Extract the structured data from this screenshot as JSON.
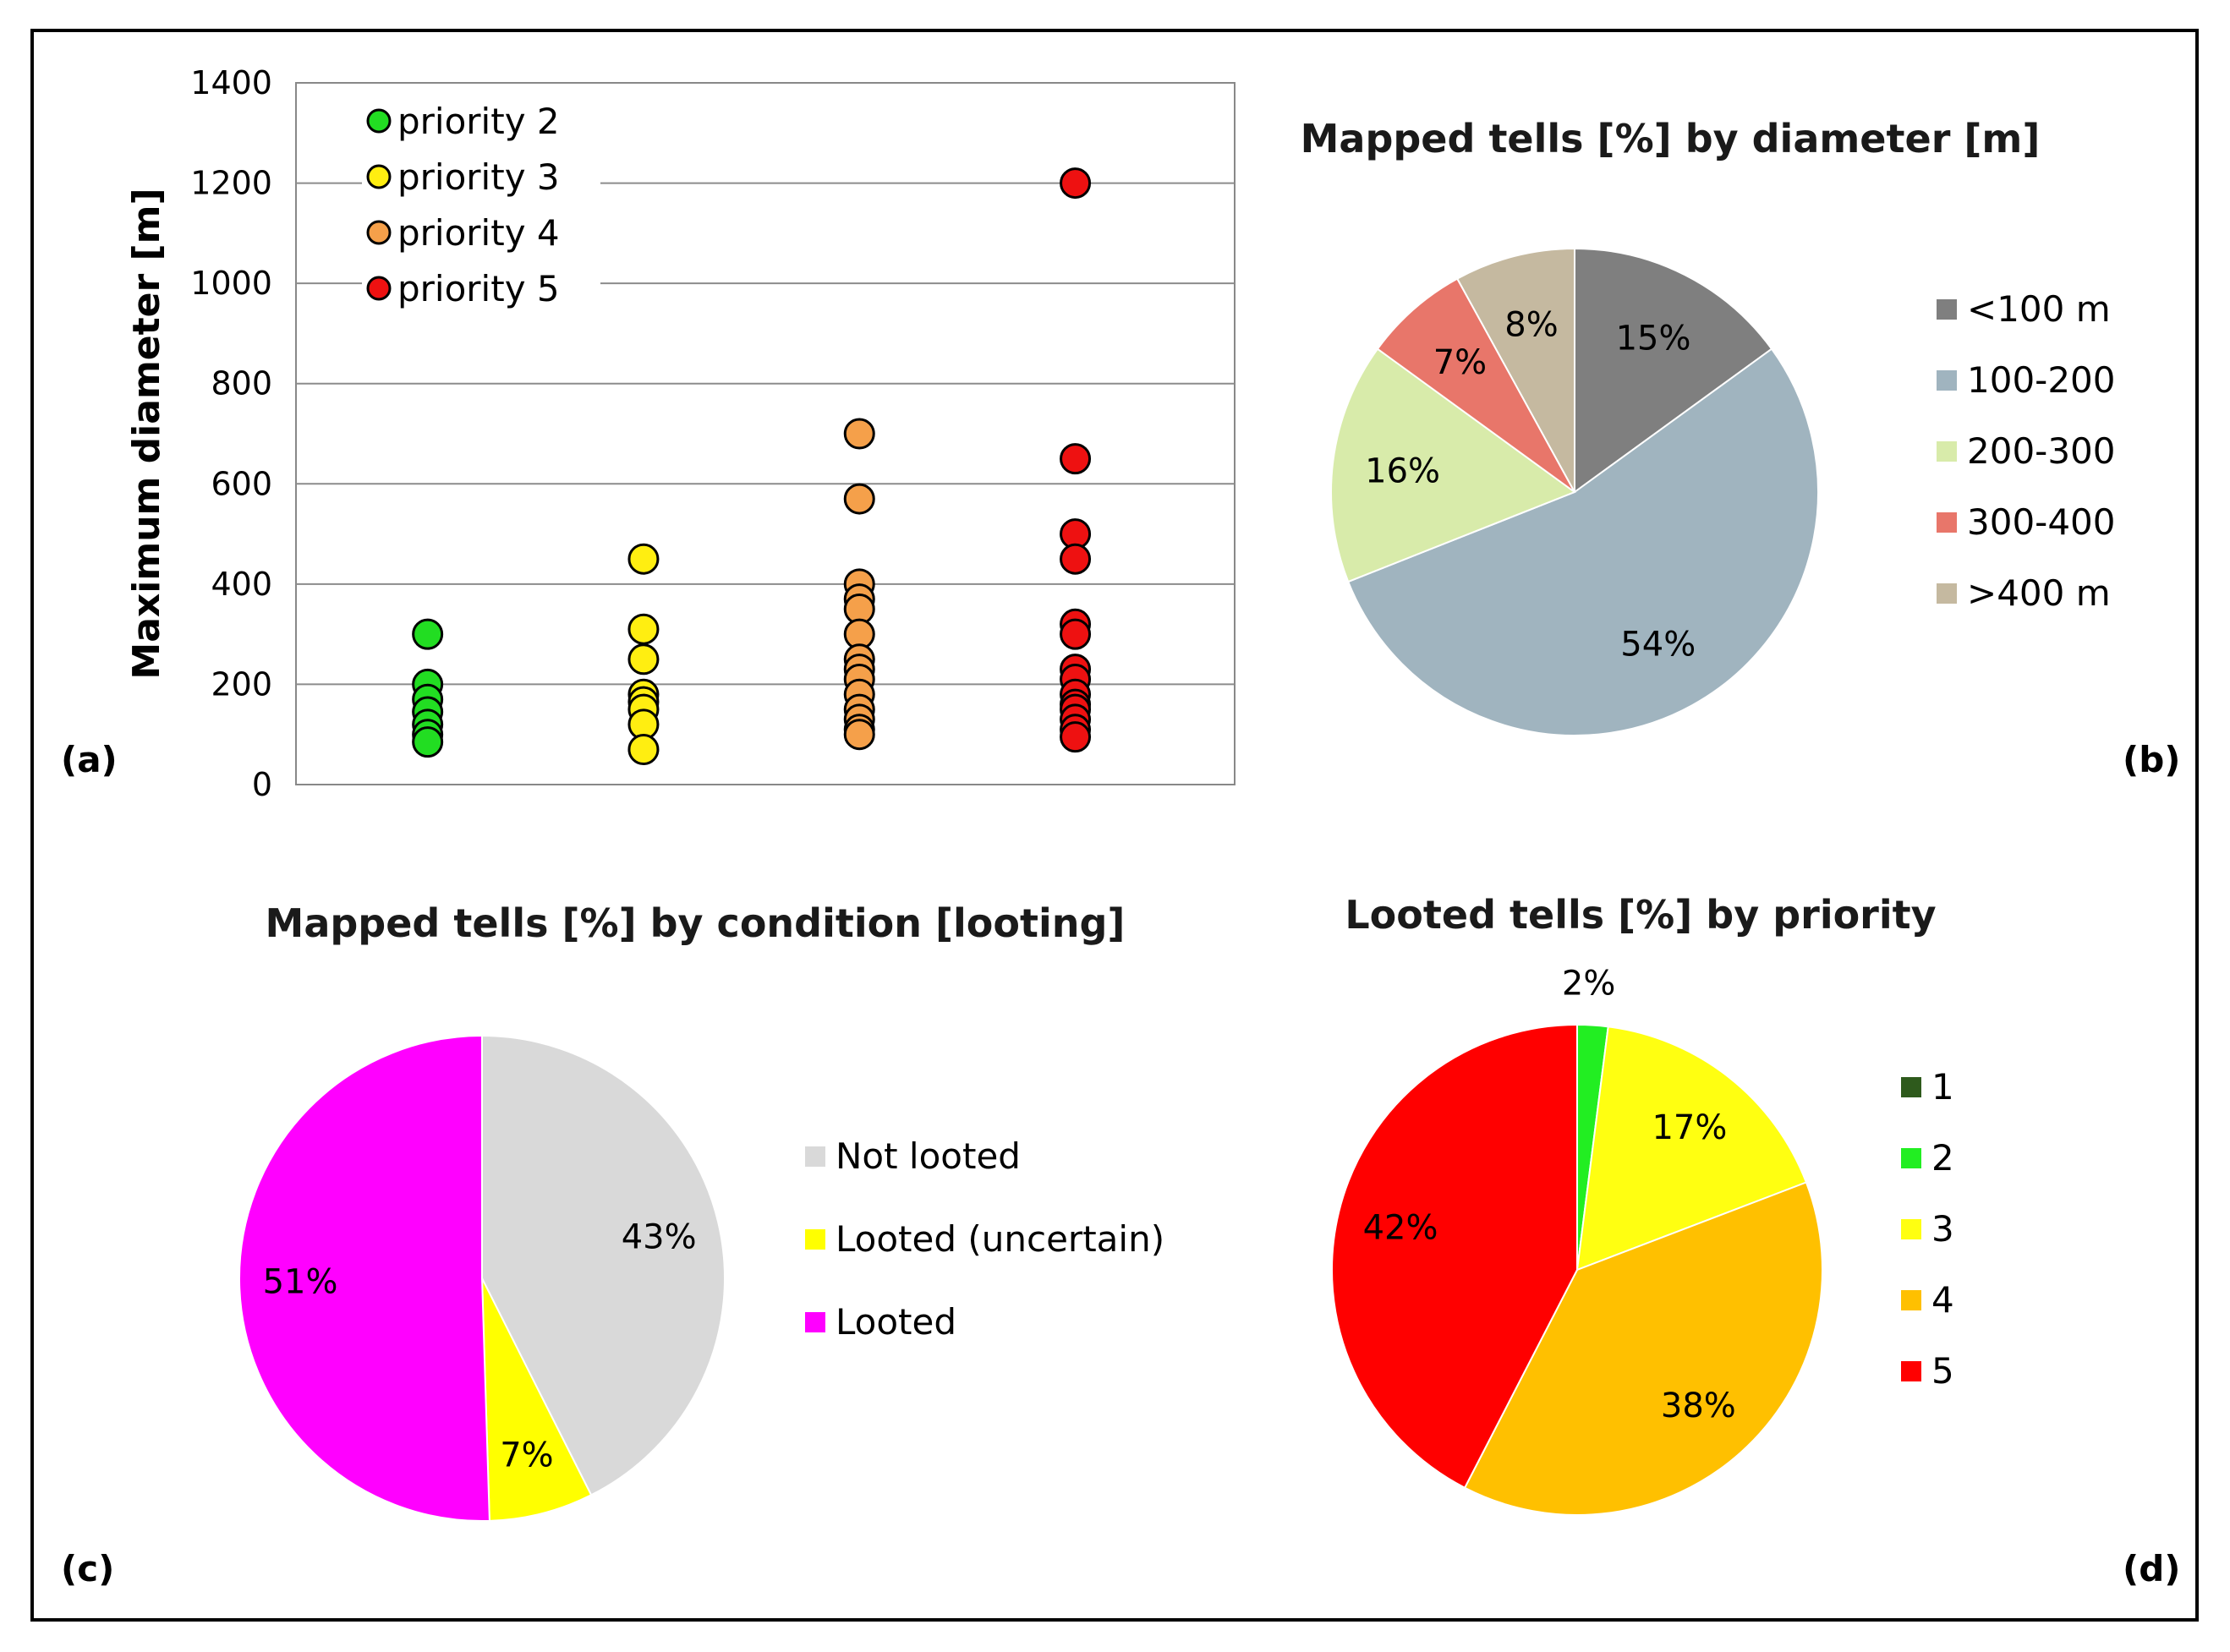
{
  "panels": {
    "a": "(a)",
    "b": "(b)",
    "c": "(c)",
    "d": "(d)"
  },
  "chart_data": [
    {
      "type": "scatter",
      "title": "",
      "xlabel": "",
      "ylabel": "Maximum diameter [m]",
      "ylim": [
        0,
        1400
      ],
      "yticks": [
        "0",
        "200",
        "400",
        "600",
        "800",
        "1000",
        "1200",
        "1400"
      ],
      "grid": true,
      "legend_position": "top-left",
      "series": [
        {
          "name": "priority 2",
          "color": "#22dd22",
          "x": 1,
          "values": [
            300,
            200,
            170,
            145,
            120,
            100,
            85
          ]
        },
        {
          "name": "priority 3",
          "color": "#ffee11",
          "x": 2,
          "values": [
            450,
            310,
            250,
            180,
            165,
            150,
            120,
            70
          ]
        },
        {
          "name": "priority 4",
          "color": "#f5a04a",
          "x": 3,
          "values": [
            700,
            570,
            400,
            370,
            350,
            300,
            250,
            230,
            210,
            180,
            150,
            130,
            110,
            100
          ]
        },
        {
          "name": "priority 5",
          "color": "#ee1111",
          "x": 4,
          "values": [
            1200,
            650,
            500,
            450,
            320,
            300,
            230,
            210,
            180,
            160,
            150,
            130,
            110,
            95
          ]
        }
      ]
    },
    {
      "type": "pie",
      "title": "Mapped tells [%] by diameter [m]",
      "slices": [
        {
          "label": "<100 m",
          "value": 15,
          "text": "15%",
          "color": "#7f7f7f"
        },
        {
          "label": "100-200",
          "value": 54,
          "text": "54%",
          "color": "#a0b4bf"
        },
        {
          "label": "200-300",
          "value": 16,
          "text": "16%",
          "color": "#d8ebaa"
        },
        {
          "label": "300-400",
          "value": 7,
          "text": "7%",
          "color": "#e8766a"
        },
        {
          "label": ">400 m",
          "value": 8,
          "text": "8%",
          "color": "#c5b9a0"
        }
      ]
    },
    {
      "type": "pie",
      "title": "Mapped tells [%] by condition [looting]",
      "slices": [
        {
          "label": "Not looted",
          "value": 43,
          "text": "43%",
          "color": "#d9d9d9"
        },
        {
          "label": "Looted (uncertain)",
          "value": 7,
          "text": "7%",
          "color": "#ffff00"
        },
        {
          "label": "Looted",
          "value": 51,
          "text": "51%",
          "color": "#ff00ff"
        }
      ]
    },
    {
      "type": "pie",
      "title": "Looted tells [%] by priority",
      "slices": [
        {
          "label": "1",
          "value": 0,
          "text": "",
          "color": "#2e5a1c"
        },
        {
          "label": "2",
          "value": 2,
          "text": "2%",
          "color": "#22ee22"
        },
        {
          "label": "3",
          "value": 17,
          "text": "17%",
          "color": "#ffff11"
        },
        {
          "label": "4",
          "value": 38,
          "text": "38%",
          "color": "#ffc000"
        },
        {
          "label": "5",
          "value": 42,
          "text": "42%",
          "color": "#ff0000"
        }
      ]
    }
  ]
}
